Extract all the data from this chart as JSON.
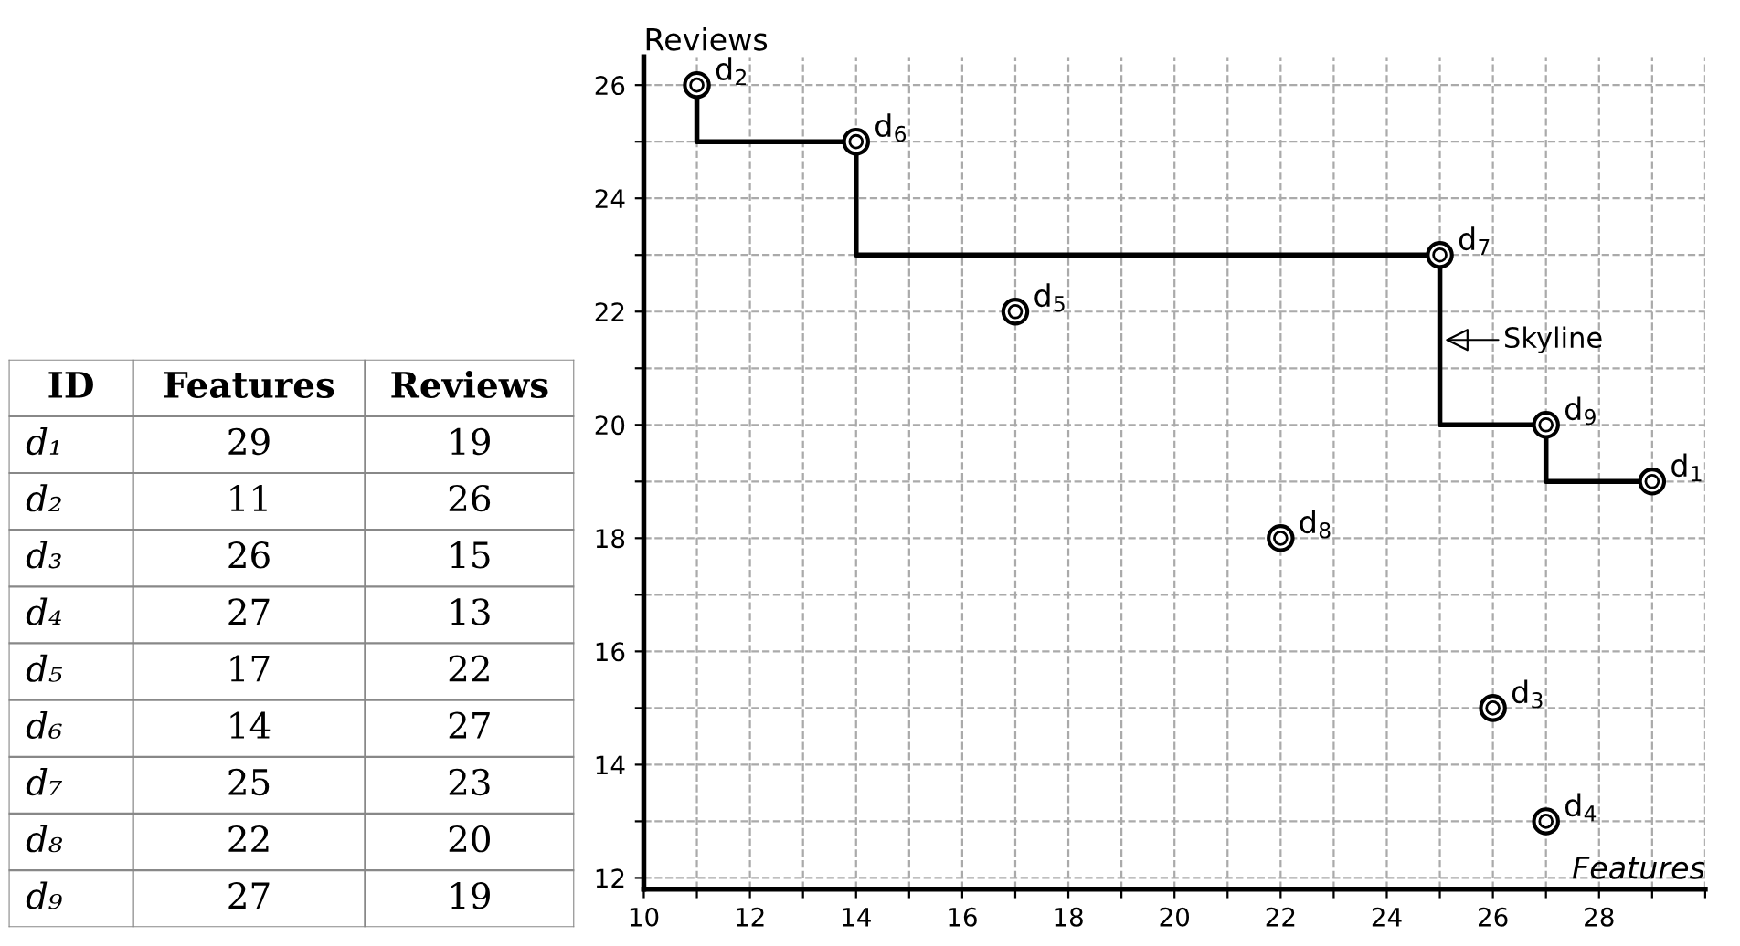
{
  "chart_data": [
    {
      "type": "other",
      "categories": [
        "ID",
        "Features",
        "Reviews"
      ],
      "cell_labels": [
        [
          "d₁",
          "29",
          "19"
        ],
        [
          "d₂",
          "11",
          "26"
        ],
        [
          "d₃",
          "26",
          "15"
        ],
        [
          "d₄",
          "27",
          "13"
        ],
        [
          "d₅",
          "17",
          "22"
        ],
        [
          "d₆",
          "14",
          "27"
        ],
        [
          "d₇",
          "25",
          "23"
        ],
        [
          "d₈",
          "22",
          "20"
        ],
        [
          "d₉",
          "27",
          "19"
        ]
      ]
    },
    {
      "type": "scatter",
      "xlabel": "Features",
      "ylabel": "Reviews",
      "series": [
        {
          "type": "scatter",
          "color": "#000000",
          "marker": "circle",
          "x": [
            29,
            11,
            26,
            27,
            17,
            14,
            25,
            22,
            27
          ],
          "values": [
            19,
            26,
            15,
            13,
            22,
            25,
            23,
            18,
            20
          ]
        },
        {
          "type": "step",
          "color": "#000000",
          "line_style": "solid",
          "marker": "circle",
          "x": [
            11,
            14,
            25,
            27,
            29
          ],
          "values": [
            26,
            25,
            23,
            20,
            19
          ]
        }
      ],
      "annotations": [
        {
          "text": "d$_{1}$",
          "x": 29,
          "y": 19
        },
        {
          "text": "d$_{2}$",
          "x": 11,
          "y": 26
        },
        {
          "text": "d$_{3}$",
          "x": 26,
          "y": 15
        },
        {
          "text": "d$_{4}$",
          "x": 27,
          "y": 13
        },
        {
          "text": "d$_{5}$",
          "x": 17,
          "y": 22
        },
        {
          "text": "d$_{6}$",
          "x": 14,
          "y": 25
        },
        {
          "text": "d$_{7}$",
          "x": 25,
          "y": 23
        },
        {
          "text": "d$_{8}$",
          "x": 22,
          "y": 18
        },
        {
          "text": "d$_{9}$",
          "x": 27,
          "y": 20
        },
        {
          "text": "Skyline",
          "x": 25,
          "y": 21.5
        }
      ],
      "xlim": [
        10,
        30
      ],
      "ylim": [
        11.8,
        26.5
      ],
      "xticks": [
        10,
        {
          "value": 11,
          "label": null
        },
        12,
        {
          "value": 13,
          "label": null
        },
        14,
        {
          "value": 15,
          "label": null
        },
        16,
        {
          "value": 17,
          "label": null
        },
        18,
        {
          "value": 19,
          "label": null
        },
        20,
        {
          "value": 21,
          "label": null
        },
        22,
        {
          "value": 23,
          "label": null
        },
        24,
        {
          "value": 25,
          "label": null
        },
        26,
        {
          "value": 27,
          "label": null
        },
        28,
        {
          "value": 29,
          "label": null
        },
        {
          "value": 30,
          "label": null
        }
      ],
      "yticks": [
        12,
        {
          "value": 13,
          "label": null
        },
        14,
        {
          "value": 15,
          "label": null
        },
        16,
        {
          "value": 17,
          "label": null
        },
        18,
        {
          "value": 19,
          "label": null
        },
        20,
        {
          "value": 21,
          "label": null
        },
        22,
        {
          "value": 23,
          "label": null
        },
        24,
        {
          "value": 25,
          "label": null
        },
        26
      ],
      "grid": true
    }
  ]
}
